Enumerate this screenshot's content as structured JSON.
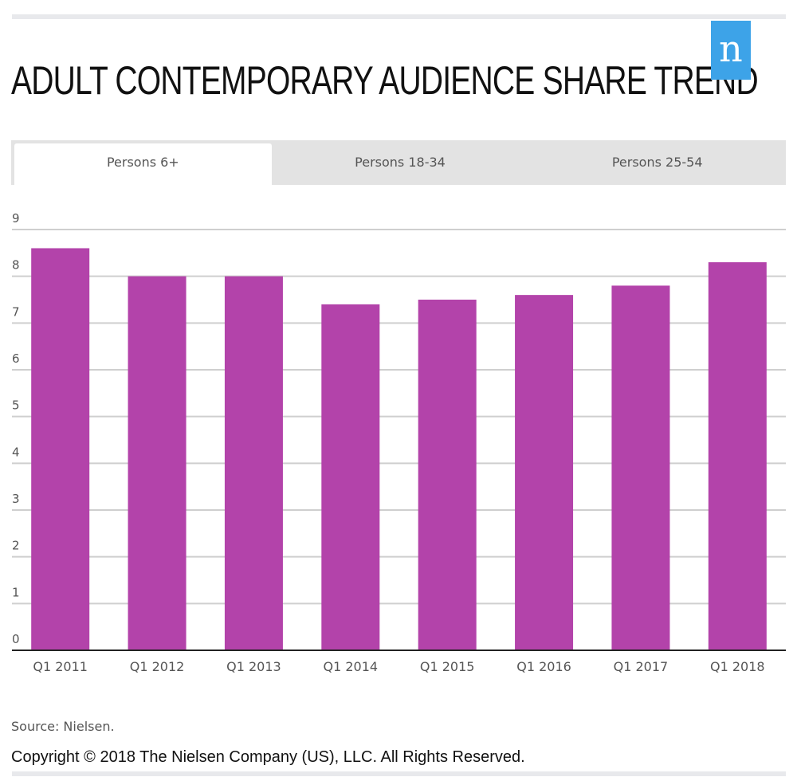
{
  "title": "ADULT CONTEMPORARY AUDIENCE SHARE TREND",
  "logo": "n",
  "tabs": [
    {
      "label": "Persons 6+",
      "active": true
    },
    {
      "label": "Persons 18-34"
    },
    {
      "label": "Persons 25-54"
    }
  ],
  "source": "Source: Nielsen.",
  "copyright": "Copyright © 2018 The Nielsen Company (US), LLC. All Rights Reserved.",
  "chart_data": {
    "type": "bar",
    "categories": [
      "Q1 2011",
      "Q1 2012",
      "Q1 2013",
      "Q1 2014",
      "Q1 2015",
      "Q1 2016",
      "Q1 2017",
      "Q1 2018"
    ],
    "values": [
      8.6,
      8.0,
      8.0,
      7.4,
      7.5,
      7.6,
      7.8,
      8.3
    ],
    "ylim": [
      0,
      9
    ],
    "yticks": [
      0,
      1,
      2,
      3,
      4,
      5,
      6,
      7,
      8,
      9
    ],
    "grid": true,
    "bar_color": "#b343aa",
    "xlabel": "",
    "ylabel": ""
  }
}
